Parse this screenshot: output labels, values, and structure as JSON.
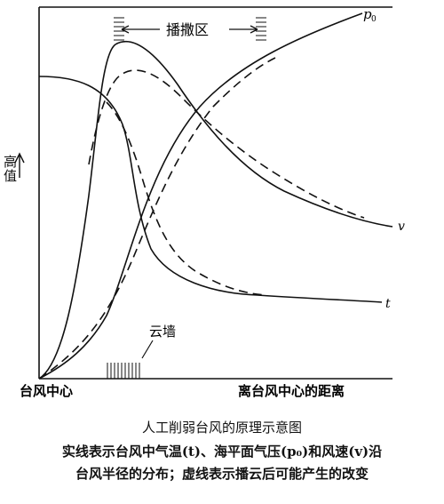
{
  "figure": {
    "y_axis_label": "高值",
    "x_axis_origin_label": "台风中心",
    "x_axis_label": "离台风中心的距离",
    "seeding_zone_label": "播撒区",
    "cloud_wall_label": "云墙",
    "curve_labels": {
      "pressure": "p",
      "pressure_subscript": "0",
      "wind": "v",
      "temperature": "t"
    }
  },
  "caption": {
    "title": "人工削弱台风的原理示意图",
    "line1": "实线表示台风中气温(t)、海平面气压(p₀)和风速(v)沿",
    "line2": "台风半径的分布；虚线表示播云后可能产生的改变"
  }
}
